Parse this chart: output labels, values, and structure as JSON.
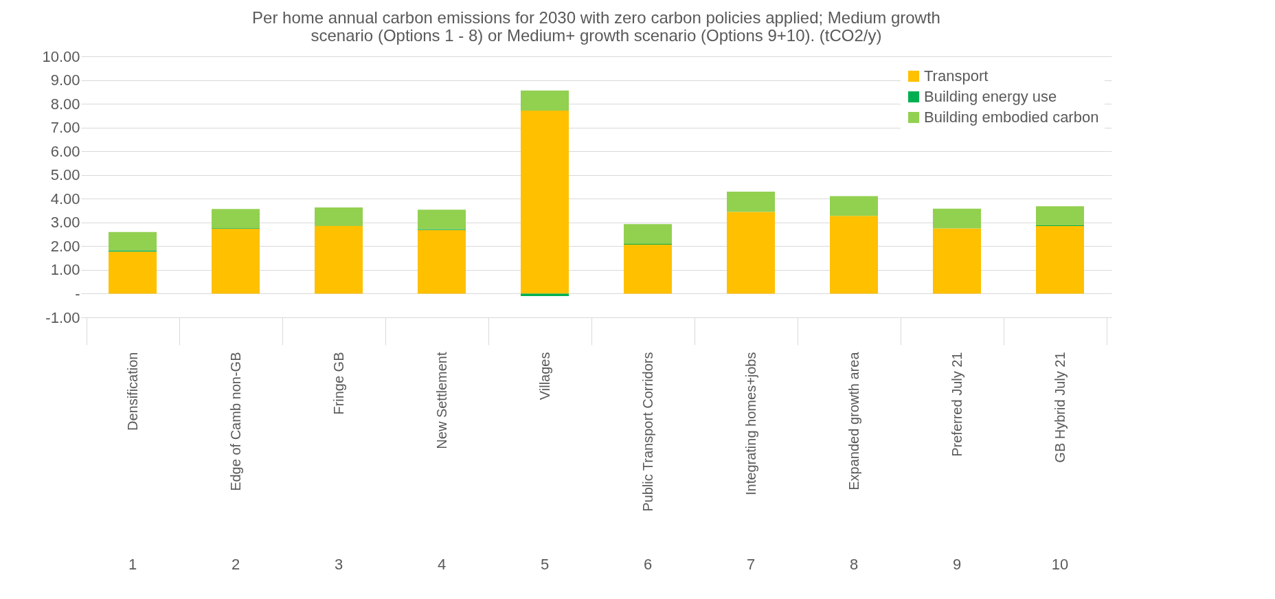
{
  "chart_data": {
    "type": "bar",
    "title": "Per home annual carbon emissions for 2030 with zero carbon policies applied; Medium growth scenario (Options 1 - 8) or Medium+ growth scenario (Options 9+10). (tCO2/y)",
    "categories": [
      "Densification",
      "Edge of Camb non-GB",
      "Fringe GB",
      "New Settlement",
      "Villages",
      "Public Transport Corridors",
      "Integrating homes+jobs",
      "Expanded growth area",
      "Preferred July 21",
      "GB Hybrid July 21"
    ],
    "series": [
      {
        "name": "Transport",
        "color": "#ffc000",
        "values": [
          1.77,
          2.74,
          2.85,
          2.68,
          7.71,
          2.07,
          3.44,
          3.28,
          2.75,
          2.85
        ]
      },
      {
        "name": "Building energy use",
        "color": "#00b050",
        "values": [
          0.05,
          0.02,
          0,
          0.04,
          -0.1,
          0.03,
          0,
          0,
          0,
          0.03
        ]
      },
      {
        "name": "Building embodied carbon",
        "color": "#92d050",
        "values": [
          0.78,
          0.81,
          0.78,
          0.82,
          0.85,
          0.83,
          0.86,
          0.83,
          0.83,
          0.8
        ]
      }
    ],
    "stacked": true,
    "ylim": [
      -1,
      10
    ],
    "yticks": [
      {
        "value": -1,
        "label": "-1.00"
      },
      {
        "value": 0,
        "label": "-"
      },
      {
        "value": 1,
        "label": "1.00"
      },
      {
        "value": 2,
        "label": "2.00"
      },
      {
        "value": 3,
        "label": "3.00"
      },
      {
        "value": 4,
        "label": "4.00"
      },
      {
        "value": 5,
        "label": "5.00"
      },
      {
        "value": 6,
        "label": "6.00"
      },
      {
        "value": 7,
        "label": "7.00"
      },
      {
        "value": 8,
        "label": "8.00"
      },
      {
        "value": 9,
        "label": "9.00"
      },
      {
        "value": 10,
        "label": "10.00"
      }
    ],
    "grid": "y",
    "legend": "top right",
    "annotations": [
      "1",
      "2",
      "3",
      "4",
      "5",
      "6",
      "7",
      "8",
      "9",
      "10"
    ]
  }
}
